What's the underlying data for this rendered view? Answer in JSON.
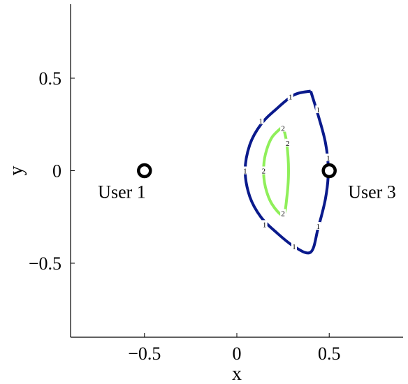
{
  "chart_data": {
    "type": "contour",
    "xlabel": "x",
    "ylabel": "y",
    "xlim": [
      -0.9,
      0.9
    ],
    "ylim": [
      -0.9,
      0.9
    ],
    "xticks": [
      {
        "value": -0.5,
        "label": "−0.5"
      },
      {
        "value": 0,
        "label": "0"
      },
      {
        "value": 0.5,
        "label": "0.5"
      }
    ],
    "yticks": [
      {
        "value": 0.5,
        "label": "0.5"
      },
      {
        "value": 0,
        "label": "0"
      },
      {
        "value": -0.5,
        "label": "−0.5"
      }
    ],
    "users": [
      {
        "label": "User 1",
        "x": -0.5,
        "y": 0,
        "label_side": "left"
      },
      {
        "label": "User 3",
        "x": 0.5,
        "y": 0,
        "label_side": "right"
      }
    ],
    "contours": [
      {
        "level": "1",
        "color": "#0a1a8c",
        "points": [
          [
            0.4,
            0.43
          ],
          [
            0.31,
            0.41
          ],
          [
            0.21,
            0.33
          ],
          [
            0.13,
            0.25
          ],
          [
            0.07,
            0.14
          ],
          [
            0.045,
            0.0
          ],
          [
            0.07,
            -0.14
          ],
          [
            0.13,
            -0.25
          ],
          [
            0.21,
            -0.33
          ],
          [
            0.31,
            -0.41
          ],
          [
            0.4,
            -0.44
          ],
          [
            0.44,
            -0.31
          ],
          [
            0.48,
            -0.15
          ],
          [
            0.495,
            0.0
          ],
          [
            0.48,
            0.15
          ],
          [
            0.44,
            0.3
          ],
          [
            0.4,
            0.43
          ]
        ],
        "labels": [
          [
            0.045,
            0.0
          ],
          [
            0.13,
            0.27
          ],
          [
            0.29,
            0.4
          ],
          [
            0.44,
            0.33
          ],
          [
            0.495,
            0.07
          ],
          [
            0.44,
            -0.3
          ],
          [
            0.31,
            -0.41
          ],
          [
            0.15,
            -0.29
          ]
        ]
      },
      {
        "level": "2",
        "color": "#8fef5a",
        "points": [
          [
            0.25,
            0.24
          ],
          [
            0.19,
            0.18
          ],
          [
            0.155,
            0.09
          ],
          [
            0.145,
            0.0
          ],
          [
            0.155,
            -0.09
          ],
          [
            0.19,
            -0.18
          ],
          [
            0.25,
            -0.24
          ],
          [
            0.27,
            -0.15
          ],
          [
            0.28,
            0.0
          ],
          [
            0.27,
            0.15
          ],
          [
            0.25,
            0.24
          ]
        ],
        "labels": [
          [
            0.25,
            0.23
          ],
          [
            0.275,
            0.15
          ],
          [
            0.145,
            0.0
          ],
          [
            0.25,
            -0.23
          ]
        ]
      }
    ],
    "grid": false,
    "legend": "none"
  }
}
